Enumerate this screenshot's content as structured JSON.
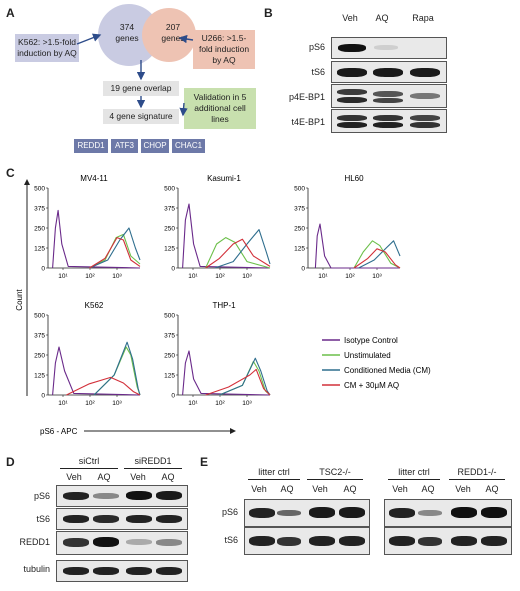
{
  "panel_a": {
    "label": "A",
    "k562_text": "K562: >1.5-fold induction by AQ",
    "u266_text": "U266: >1.5-fold induction by AQ",
    "left_circle": "374 genes",
    "right_circle": "207 genes",
    "overlap": "19 gene overlap",
    "validation": "Validation in 5 additional cell lines",
    "signature": "4 gene signature",
    "genes": [
      "REDD1",
      "ATF3",
      "CHOP",
      "CHAC1"
    ],
    "colors": {
      "left_circle": "#c9cbe2",
      "right_circle": "#eec3b3",
      "gene_box": "#6d79a8",
      "validation": "#c8e0ae",
      "grey_box": "#e4e4e4"
    }
  },
  "panel_b": {
    "label": "B",
    "lanes": [
      "Veh",
      "AQ",
      "Rapa"
    ],
    "rows": [
      "pS6",
      "tS6",
      "p4E-BP1",
      "t4E-BP1"
    ]
  },
  "panel_c": {
    "label": "C",
    "ylabel": "Count",
    "xlabel": "pS6 - APC",
    "legend": [
      "Isotype Control",
      "Unstimulated",
      "Conditioned Media (CM)",
      "CM + 30μM AQ"
    ],
    "colors": [
      "#6a2a8a",
      "#6cbf4a",
      "#2f6e8e",
      "#d2303a"
    ],
    "plots": [
      {
        "title": "MV4-11",
        "yticks": [
          "0",
          "125",
          "250",
          "375",
          "500"
        ],
        "xticks": [
          "10¹",
          "10²",
          "10³"
        ]
      },
      {
        "title": "Kasumi-1",
        "yticks": [
          "0",
          "125",
          "250",
          "375",
          "500"
        ],
        "xticks": [
          "10¹",
          "10²",
          "10³"
        ]
      },
      {
        "title": "HL60",
        "yticks": [
          "0",
          "125",
          "250",
          "375",
          "500"
        ],
        "xticks": [
          "10¹",
          "10²",
          "10³"
        ]
      },
      {
        "title": "K562",
        "yticks": [
          "0",
          "125",
          "250",
          "375",
          "500"
        ],
        "xticks": [
          "10¹",
          "10²",
          "10³"
        ]
      },
      {
        "title": "THP-1",
        "yticks": [
          "0",
          "125",
          "250",
          "375",
          "500"
        ],
        "xticks": [
          "10¹",
          "10²",
          "10³"
        ]
      }
    ]
  },
  "panel_d": {
    "label": "D",
    "groups": [
      "siCtrl",
      "siREDD1"
    ],
    "lanes": [
      "Veh",
      "AQ",
      "Veh",
      "AQ"
    ],
    "rows": [
      "pS6",
      "tS6",
      "REDD1",
      "tubulin"
    ]
  },
  "panel_e": {
    "label": "E",
    "groups_left": [
      "litter ctrl",
      "TSC2-/-"
    ],
    "groups_right": [
      "litter ctrl",
      "REDD1-/-"
    ],
    "lanes": [
      "Veh",
      "AQ",
      "Veh",
      "AQ"
    ],
    "rows": [
      "pS6",
      "tS6"
    ]
  }
}
